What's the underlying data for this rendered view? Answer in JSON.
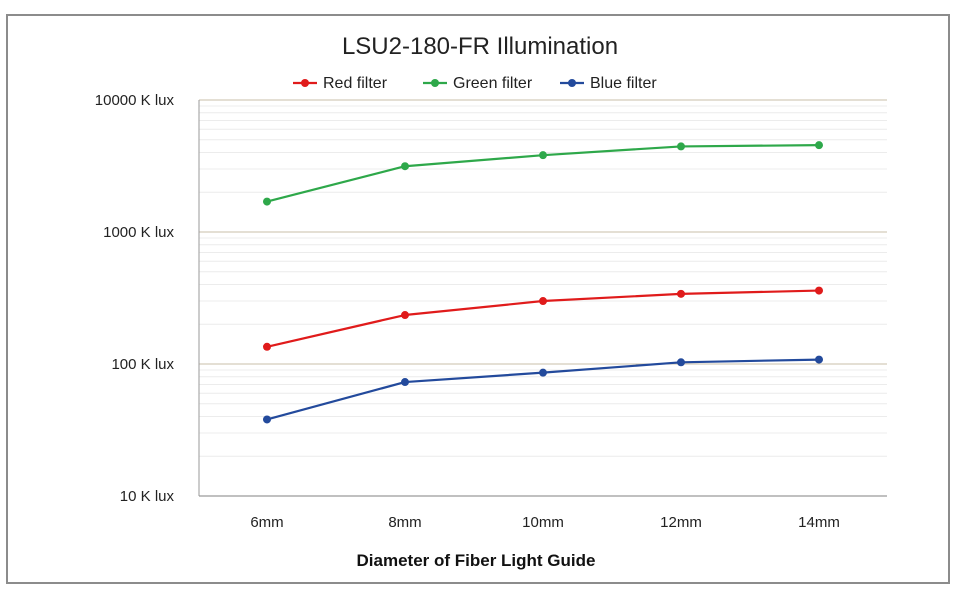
{
  "chart_data": {
    "type": "line",
    "title": "LSU2-180-FR Illumination",
    "xlabel": "Diameter of Fiber Light Guide",
    "ylabel": "",
    "y_scale": "log",
    "ylim": [
      10,
      10000
    ],
    "y_tick_values": [
      10,
      100,
      1000,
      10000
    ],
    "y_tick_labels": [
      "10 K lux",
      "100 K lux",
      "1000 K lux",
      "10000 K lux"
    ],
    "categories": [
      "6mm",
      "8mm",
      "10mm",
      "12mm",
      "14mm"
    ],
    "legend_position": "top-center",
    "gridlines": "major and minor horizontal",
    "series": [
      {
        "name": "Red filter",
        "color": "#e01b1b",
        "values": [
          135,
          235,
          300,
          340,
          360
        ]
      },
      {
        "name": "Green filter",
        "color": "#2ea84a",
        "values": [
          1700,
          3150,
          3820,
          4450,
          4550
        ]
      },
      {
        "name": "Blue filter",
        "color": "#234a9c",
        "values": [
          38,
          73,
          86,
          103,
          108
        ]
      }
    ]
  }
}
